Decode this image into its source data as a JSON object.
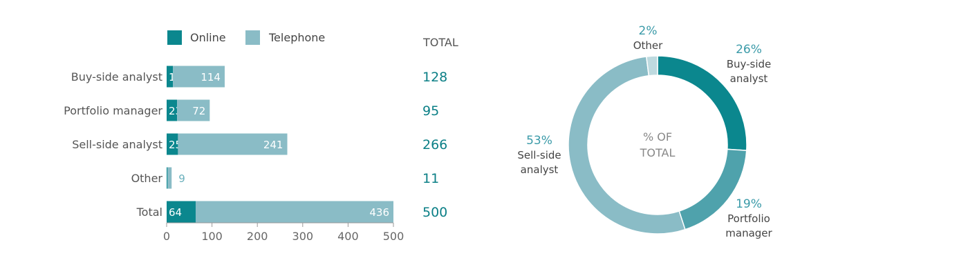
{
  "chart_data": [
    {
      "type": "bar",
      "stacked": true,
      "orientation": "horizontal",
      "categories": [
        "Buy-side analyst",
        "Portfolio manager",
        "Sell-side analyst",
        "Other",
        "Total"
      ],
      "series": [
        {
          "name": "Online",
          "color": "#0b878e",
          "values": [
            14,
            23,
            25,
            2,
            64
          ]
        },
        {
          "name": "Telephone",
          "color": "#8abcc6",
          "values": [
            114,
            72,
            241,
            9,
            436
          ]
        }
      ],
      "totals_header": "TOTAL",
      "totals": [
        128,
        95,
        266,
        11,
        500
      ],
      "xlim": [
        0,
        500
      ],
      "xticks": [
        0,
        100,
        200,
        300,
        400,
        500
      ],
      "grid": false,
      "legend": "top"
    },
    {
      "type": "pie",
      "donut": true,
      "center_label": [
        "% OF",
        "TOTAL"
      ],
      "slices": [
        {
          "label": [
            "Buy-side",
            "analyst"
          ],
          "value": 26,
          "pct": "26%",
          "color": "#0b878e"
        },
        {
          "label": [
            "Portfolio",
            "manager"
          ],
          "value": 19,
          "pct": "19%",
          "color": "#4fa2ac"
        },
        {
          "label": [
            "Sell-side",
            "analyst"
          ],
          "value": 53,
          "pct": "53%",
          "color": "#8abcc6"
        },
        {
          "label": [
            "Other"
          ],
          "value": 2,
          "pct": "2%",
          "color": "#bedadf"
        }
      ]
    }
  ]
}
